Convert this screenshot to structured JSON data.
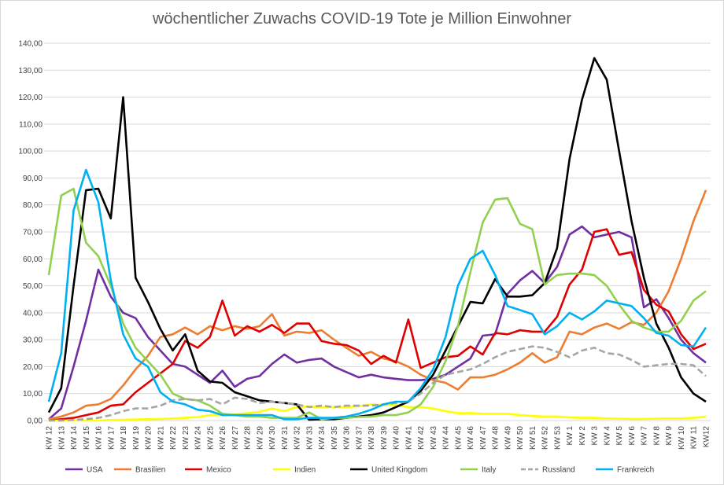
{
  "chart_data": {
    "type": "line",
    "title": "wöchentlicher Zuwachs COVID-19 Tote je Million Einwohner",
    "categories": [
      "KW 12",
      "KW 13",
      "KW 14",
      "KW 15",
      "KW 16",
      "KW 17",
      "KW 18",
      "KW 19",
      "KW 20",
      "KW 21",
      "KW 22",
      "KW 23",
      "KW 24",
      "KW 25",
      "KW 26",
      "KW 27",
      "KW 28",
      "KW 29",
      "KW 30",
      "KW 31",
      "KW 32",
      "KW 33",
      "KW 34",
      "KW 35",
      "KW 36",
      "KW 37",
      "KW 38",
      "KW 39",
      "KW 40",
      "KW 41",
      "KW 42",
      "KW 43",
      "KW 44",
      "KW 45",
      "KW 46",
      "KW 47",
      "KW 48",
      "KW 49",
      "KW 50",
      "KW 51",
      "KW 52",
      "KW 53",
      "KW 1",
      "KW 2",
      "KW 3",
      "KW 4",
      "KW 5",
      "KW 6",
      "KW 7",
      "KW 8",
      "KW 9",
      "KW 10",
      "KW 11",
      "KW12"
    ],
    "ylim": [
      0,
      140
    ],
    "yticks": [
      {
        "value": 0,
        "label": "0,00"
      },
      {
        "value": 10,
        "label": "10,00"
      },
      {
        "value": 20,
        "label": "20,00"
      },
      {
        "value": 30,
        "label": "30,00"
      },
      {
        "value": 40,
        "label": "40,00"
      },
      {
        "value": 50,
        "label": "50,00"
      },
      {
        "value": 60,
        "label": "60,00"
      },
      {
        "value": 70,
        "label": "70,00"
      },
      {
        "value": 80,
        "label": "80,00"
      },
      {
        "value": 90,
        "label": "90,00"
      },
      {
        "value": 100,
        "label": "100,00"
      },
      {
        "value": 110,
        "label": "110,00"
      },
      {
        "value": 120,
        "label": "120,00"
      },
      {
        "value": 130,
        "label": "130,00"
      },
      {
        "value": 140,
        "label": "140,00"
      }
    ],
    "grid": true,
    "legend": "bottom",
    "series": [
      {
        "name": "USA",
        "color": "#7030a0",
        "values": [
          0.5,
          4.5,
          20,
          37,
          56,
          46,
          40,
          38,
          31,
          26,
          21,
          20,
          17,
          14,
          18.5,
          12.5,
          15.5,
          16.5,
          21,
          24.5,
          21.5,
          22.5,
          23,
          20,
          18,
          16,
          17,
          16,
          15.5,
          15,
          15,
          15.5,
          17,
          20,
          23,
          31.5,
          32,
          47,
          52,
          55.5,
          51,
          57,
          69,
          72,
          68,
          69,
          70,
          68,
          42,
          45,
          38,
          30,
          25,
          21.5
        ]
      },
      {
        "name": "Brasilien",
        "color": "#ed7d31",
        "values": [
          0.5,
          1.5,
          3,
          5.5,
          6,
          8,
          13,
          19,
          24,
          31,
          32,
          34.5,
          32,
          35,
          33.5,
          35,
          34,
          35,
          39.5,
          31.5,
          33,
          32.5,
          33.5,
          30,
          27,
          24,
          25.5,
          23,
          22,
          20,
          17,
          15,
          14,
          11.5,
          16,
          16,
          17,
          19,
          21.5,
          25,
          21.5,
          23.5,
          33,
          32,
          34.5,
          36,
          34,
          36.5,
          35.5,
          40,
          48,
          60,
          74,
          85.5
        ]
      },
      {
        "name": "Mexico",
        "color": "#e00000",
        "values": [
          0,
          0.5,
          1,
          2,
          3,
          5.5,
          6,
          10.5,
          14,
          17.5,
          21,
          29.5,
          27,
          31,
          44.5,
          31.5,
          35,
          33,
          35.5,
          32.5,
          36,
          36,
          29.5,
          28.5,
          28,
          26,
          21,
          24,
          21.5,
          37.5,
          19.5,
          21.5,
          23.5,
          24,
          27.5,
          24.5,
          32.5,
          32,
          33.5,
          33,
          33,
          38.5,
          50.5,
          56,
          70,
          71,
          61.5,
          62.5,
          48.5,
          43,
          40.5,
          32,
          26.5,
          28.5
        ]
      },
      {
        "name": "Indien",
        "color": "#ffff00",
        "values": [
          0,
          0,
          0,
          0,
          0,
          0.2,
          0.3,
          0.4,
          0.5,
          0.6,
          0.8,
          1,
          1.3,
          2,
          2.2,
          2.3,
          2.7,
          3.2,
          4.5,
          3.5,
          5,
          5.2,
          5,
          5,
          5,
          5.3,
          6,
          5.8,
          5.7,
          5,
          5,
          4.5,
          3.5,
          2.7,
          2.8,
          2.5,
          2.5,
          2.5,
          2,
          1.7,
          1.5,
          1.5,
          1.2,
          1,
          1,
          0.8,
          0.7,
          0.6,
          0.6,
          0.7,
          0.8,
          0.8,
          1,
          1.5
        ]
      },
      {
        "name": "United Kingdom",
        "color": "#000000",
        "values": [
          3,
          12,
          50,
          85.5,
          86,
          75,
          120,
          53,
          44,
          34,
          26,
          32,
          18.5,
          14.5,
          14,
          10.5,
          9,
          7.5,
          7,
          6.5,
          6,
          0.3,
          0.5,
          0.5,
          1,
          1.5,
          2,
          3,
          5,
          7,
          11,
          17,
          26,
          35,
          44,
          43.5,
          52.5,
          46,
          46,
          46.5,
          51,
          64,
          97,
          119,
          134.5,
          126.5,
          100,
          74,
          53,
          36,
          27,
          16,
          10,
          7
        ]
      },
      {
        "name": "Italy",
        "color": "#92d050",
        "values": [
          54,
          83.5,
          86,
          66,
          61,
          50,
          36,
          27,
          22,
          17,
          10,
          8,
          7.5,
          5.5,
          2.5,
          2,
          1.5,
          1.5,
          1,
          1,
          1,
          3,
          0.5,
          1,
          1,
          1.3,
          1.5,
          2,
          2,
          3,
          6,
          12.5,
          22,
          35,
          55,
          73.5,
          82,
          82.5,
          73,
          71,
          50.5,
          54,
          54.5,
          54.5,
          54,
          50,
          43,
          37,
          34.5,
          33,
          33,
          37,
          44.5,
          48
        ]
      },
      {
        "name": "Russland",
        "color": "#a5a5a5",
        "dash": "dashed",
        "values": [
          0,
          0,
          0.3,
          0.5,
          1,
          2,
          3.5,
          4.5,
          4.5,
          5.5,
          7.5,
          8,
          7.5,
          8,
          6,
          8.5,
          8,
          6.5,
          7,
          6.5,
          6,
          5,
          5.5,
          5,
          5.5,
          5.5,
          5.5,
          6,
          6.5,
          7,
          10,
          14,
          17,
          18,
          19,
          21,
          23.5,
          25.5,
          26.5,
          27.5,
          27,
          25.5,
          23.5,
          26,
          27,
          25,
          24.5,
          22.5,
          20,
          20.5,
          21,
          21,
          20.5,
          16.5
        ]
      },
      {
        "name": "Frankreich",
        "color": "#00b0f0",
        "values": [
          7,
          25,
          78,
          93,
          81,
          52,
          32,
          23,
          20,
          10.5,
          7,
          6,
          4,
          3.5,
          2,
          2,
          2,
          2,
          2,
          0.5,
          0.5,
          1,
          1,
          1,
          1.5,
          2.5,
          4,
          6,
          7,
          7,
          12,
          19,
          31,
          50,
          60,
          63,
          54,
          42.5,
          41,
          39.5,
          32,
          35,
          40,
          37.5,
          40.5,
          44.5,
          43.5,
          42.5,
          38,
          32.5,
          31.5,
          28,
          27.5,
          34.5
        ]
      }
    ]
  }
}
